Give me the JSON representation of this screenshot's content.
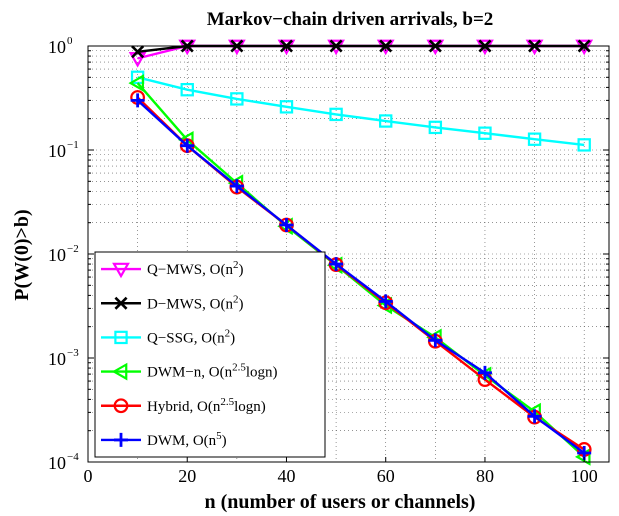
{
  "chart_data": {
    "type": "line",
    "title": "Markov−chain driven arrivals, b=2",
    "xlabel": "n (number of users or channels)",
    "ylabel": "P(W(0)>b)",
    "xlim": [
      0,
      105
    ],
    "ylim": [
      0.0001,
      1
    ],
    "yscale": "log",
    "grid": true,
    "legend_position": "bottom-left",
    "x_ticks": [
      0,
      20,
      40,
      60,
      80,
      100
    ],
    "y_ticks": [
      {
        "value": 1,
        "base": "10",
        "exp": "0"
      },
      {
        "value": 0.1,
        "base": "10",
        "exp": "−1"
      },
      {
        "value": 0.01,
        "base": "10",
        "exp": "−2"
      },
      {
        "value": 0.001,
        "base": "10",
        "exp": "−3"
      },
      {
        "value": 0.0001,
        "base": "10",
        "exp": "−4"
      }
    ],
    "series": [
      {
        "name": "Q−MWS, O(n",
        "name_sup": "2",
        "name_post": ")",
        "color": "#ff00ff",
        "marker": "triangle-down",
        "x": [
          10,
          20,
          30,
          40,
          50,
          60,
          70,
          80,
          90,
          100
        ],
        "y": [
          0.76,
          1,
          1,
          1,
          1,
          1,
          1,
          1,
          1,
          1
        ]
      },
      {
        "name": "D−MWS, O(n",
        "name_sup": "2",
        "name_post": ")",
        "color": "#000000",
        "marker": "x",
        "x": [
          10,
          20,
          30,
          40,
          50,
          60,
          70,
          80,
          90,
          100
        ],
        "y": [
          0.88,
          1,
          1,
          1,
          1,
          1,
          1,
          1,
          1,
          1
        ]
      },
      {
        "name": "Q−SSG, O(n",
        "name_sup": "2",
        "name_post": ")",
        "color": "#00ffff",
        "marker": "square",
        "x": [
          10,
          20,
          30,
          40,
          50,
          60,
          70,
          80,
          90,
          100
        ],
        "y": [
          0.5,
          0.38,
          0.31,
          0.26,
          0.22,
          0.19,
          0.165,
          0.145,
          0.127,
          0.112
        ]
      },
      {
        "name": "DWM−n, O(n",
        "name_sup": "2.5",
        "name_post": "logn)",
        "color": "#00ff00",
        "marker": "triangle-left",
        "x": [
          10,
          20,
          30,
          40,
          50,
          60,
          70,
          80,
          90,
          100
        ],
        "y": [
          0.44,
          0.125,
          0.048,
          0.0185,
          0.0078,
          0.0032,
          0.00158,
          0.00068,
          0.000305,
          0.000112
        ]
      },
      {
        "name": "Hybrid, O(n",
        "name_sup": "2.5",
        "name_post": "logn)",
        "color": "#ff0000",
        "marker": "circle",
        "x": [
          10,
          20,
          30,
          40,
          50,
          60,
          70,
          80,
          90,
          100
        ],
        "y": [
          0.32,
          0.11,
          0.044,
          0.019,
          0.0079,
          0.0034,
          0.00145,
          0.00062,
          0.00027,
          0.000132
        ]
      },
      {
        "name": "DWM, O(n",
        "name_sup": "5",
        "name_post": ")",
        "color": "#0000ff",
        "marker": "plus",
        "x": [
          10,
          20,
          30,
          40,
          50,
          60,
          70,
          80,
          90,
          100
        ],
        "y": [
          0.3,
          0.11,
          0.045,
          0.019,
          0.008,
          0.0035,
          0.00148,
          0.00072,
          0.000275,
          0.000122
        ]
      }
    ]
  }
}
